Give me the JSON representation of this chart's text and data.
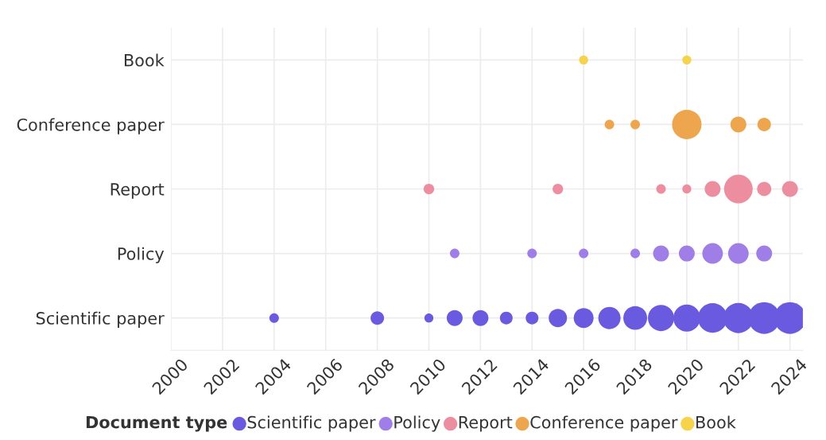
{
  "chart_data": {
    "type": "bubble",
    "orientation": "horizontal",
    "annotations": [
      "Document type"
    ],
    "grid": true,
    "marker": "circle",
    "categories": [
      "Book",
      "Conference paper",
      "Report",
      "Policy",
      "Scientific paper"
    ],
    "xlim": [
      2000,
      2024.5
    ],
    "xticks": [
      2000,
      2002,
      2004,
      2006,
      2008,
      2010,
      2012,
      2014,
      2016,
      2018,
      2020,
      2022,
      2024
    ],
    "series": [
      {
        "values": [
          null,
          null,
          null,
          null,
          2004
        ],
        "sizes": [
          null,
          null,
          null,
          null,
          0.09
        ],
        "colors": [
          null,
          null,
          null,
          null,
          "#6a5ae0"
        ]
      },
      {
        "values": [
          null,
          null,
          null,
          null,
          2008
        ],
        "sizes": [
          null,
          null,
          null,
          null,
          0.18
        ],
        "colors": [
          null,
          null,
          null,
          null,
          "#6a5ae0"
        ]
      },
      {
        "values": [
          null,
          null,
          2010,
          null,
          2010
        ],
        "sizes": [
          null,
          null,
          0.11,
          null,
          0.08
        ],
        "colors": [
          null,
          null,
          "#ec8ea0",
          null,
          "#6a5ae0"
        ]
      },
      {
        "values": [
          null,
          null,
          null,
          2011,
          2011
        ],
        "sizes": [
          null,
          null,
          null,
          0.09,
          0.25
        ],
        "colors": [
          null,
          null,
          null,
          "#a07ee8",
          "#6a5ae0"
        ]
      },
      {
        "values": [
          null,
          null,
          null,
          null,
          2012
        ],
        "sizes": [
          null,
          null,
          null,
          null,
          0.25
        ],
        "colors": [
          null,
          null,
          null,
          null,
          "#6a5ae0"
        ]
      },
      {
        "values": [
          null,
          null,
          null,
          null,
          2013
        ],
        "sizes": [
          null,
          null,
          null,
          null,
          0.16
        ],
        "colors": [
          null,
          null,
          null,
          null,
          "#6a5ae0"
        ]
      },
      {
        "values": [
          null,
          null,
          null,
          2014,
          2014
        ],
        "sizes": [
          null,
          null,
          null,
          0.09,
          0.16
        ],
        "colors": [
          null,
          null,
          null,
          "#a07ee8",
          "#6a5ae0"
        ]
      },
      {
        "values": [
          null,
          null,
          2015,
          null,
          2015
        ],
        "sizes": [
          null,
          null,
          0.11,
          null,
          0.33
        ],
        "colors": [
          null,
          null,
          "#ec8ea0",
          null,
          "#6a5ae0"
        ]
      },
      {
        "values": [
          2016,
          null,
          null,
          2016,
          2016
        ],
        "sizes": [
          0.08,
          null,
          null,
          0.09,
          0.39
        ],
        "colors": [
          "#f5d34a",
          null,
          null,
          "#a07ee8",
          "#6a5ae0"
        ]
      },
      {
        "values": [
          null,
          2017,
          null,
          null,
          2017
        ],
        "sizes": [
          null,
          0.09,
          null,
          null,
          0.49
        ],
        "colors": [
          null,
          "#eea64e",
          null,
          null,
          "#6a5ae0"
        ]
      },
      {
        "values": [
          null,
          2018,
          null,
          2018,
          2018
        ],
        "sizes": [
          null,
          0.09,
          null,
          0.09,
          0.56
        ],
        "colors": [
          null,
          "#eea64e",
          null,
          "#a07ee8",
          "#6a5ae0"
        ]
      },
      {
        "values": [
          null,
          null,
          2019,
          2019,
          2019
        ],
        "sizes": [
          null,
          null,
          0.09,
          0.25,
          0.68
        ],
        "colors": [
          null,
          null,
          "#ec8ea0",
          "#a07ee8",
          "#6a5ae0"
        ]
      },
      {
        "values": [
          2020,
          2020,
          2020,
          2020,
          2020
        ],
        "sizes": [
          0.08,
          0.86,
          0.08,
          0.25,
          0.72
        ],
        "colors": [
          "#f5d34a",
          "#eea64e",
          "#ec8ea0",
          "#a07ee8",
          "#6a5ae0"
        ]
      },
      {
        "values": [
          null,
          null,
          2021,
          2021,
          2021
        ],
        "sizes": [
          null,
          null,
          0.25,
          0.42,
          0.86
        ],
        "colors": [
          null,
          null,
          "#ec8ea0",
          "#a07ee8",
          "#6a5ae0"
        ]
      },
      {
        "values": [
          null,
          2022,
          2022,
          2022,
          2022
        ],
        "sizes": [
          null,
          0.25,
          0.81,
          0.42,
          0.9
        ],
        "colors": [
          null,
          "#eea64e",
          "#ec8ea0",
          "#a07ee8",
          "#6a5ae0"
        ]
      },
      {
        "values": [
          null,
          2023,
          2023,
          2023,
          2023
        ],
        "sizes": [
          null,
          0.18,
          0.2,
          0.25,
          1
        ],
        "colors": [
          null,
          "#eea64e",
          "#ec8ea0",
          "#a07ee8",
          "#6a5ae0"
        ]
      },
      {
        "values": [
          null,
          null,
          2024,
          null,
          2024
        ],
        "sizes": [
          null,
          null,
          0.25,
          null,
          1
        ],
        "colors": [
          null,
          null,
          "#ec8ea0",
          null,
          "#6a5ae0"
        ]
      }
    ]
  }
}
